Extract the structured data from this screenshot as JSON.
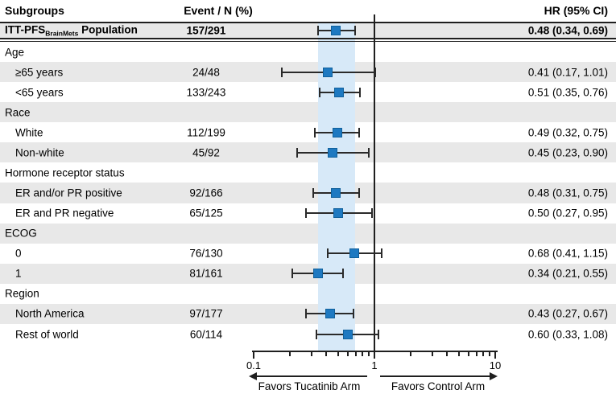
{
  "colors": {
    "row_stripe": "#E8E8E8",
    "band_blue": "#D7E9F8",
    "marker_blue": "#1E79C1",
    "marker_border": "#10609B",
    "line_black": "#1F1F1F"
  },
  "header": {
    "subgroups": "Subgroups",
    "event": "Event / N (%)",
    "hr": "HR (95% CI)"
  },
  "chart_data": {
    "type": "forest",
    "x_axis": {
      "scale": "log",
      "range": [
        0.1,
        10
      ],
      "major_ticks": [
        0.1,
        1,
        10
      ],
      "major_tick_labels": [
        "0.1",
        "1",
        "10"
      ],
      "minor_ticks": [
        0.2,
        0.3,
        0.4,
        0.5,
        0.6,
        0.7,
        0.8,
        0.9,
        2,
        3,
        4,
        5,
        6,
        7,
        8,
        9
      ],
      "reference_line": 1
    },
    "shaded_band": {
      "from": 0.34,
      "to": 0.69
    },
    "footer": {
      "left_arrow_label": "Favors Tucatinib Arm",
      "right_arrow_label": "Favors Control Arm"
    },
    "rows": [
      {
        "kind": "overall",
        "label": "ITT-PFS",
        "label_subscript": "BrainMets",
        "label_suffix": " Population",
        "event": "157/291",
        "hr": 0.48,
        "ci_low": 0.34,
        "ci_high": 0.69,
        "hr_text": "0.48 (0.34, 0.69)",
        "shaded": true
      },
      {
        "kind": "category",
        "label": "Age",
        "shaded": false
      },
      {
        "kind": "item",
        "label": "≥65 years",
        "event": "24/48",
        "hr": 0.41,
        "ci_low": 0.17,
        "ci_high": 1.01,
        "hr_text": "0.41 (0.17, 1.01)",
        "shaded": true
      },
      {
        "kind": "item",
        "label": "<65 years",
        "event": "133/243",
        "hr": 0.51,
        "ci_low": 0.35,
        "ci_high": 0.76,
        "hr_text": "0.51 (0.35, 0.76)",
        "shaded": false
      },
      {
        "kind": "category",
        "label": "Race",
        "shaded": true
      },
      {
        "kind": "item",
        "label": "White",
        "event": "112/199",
        "hr": 0.49,
        "ci_low": 0.32,
        "ci_high": 0.75,
        "hr_text": "0.49 (0.32, 0.75)",
        "shaded": false
      },
      {
        "kind": "item",
        "label": "Non-white",
        "event": "45/92",
        "hr": 0.45,
        "ci_low": 0.23,
        "ci_high": 0.9,
        "hr_text": "0.45 (0.23, 0.90)",
        "shaded": true
      },
      {
        "kind": "category",
        "label": "Hormone receptor status",
        "shaded": false
      },
      {
        "kind": "item",
        "label": "ER and/or PR positive",
        "event": "92/166",
        "hr": 0.48,
        "ci_low": 0.31,
        "ci_high": 0.75,
        "hr_text": "0.48 (0.31, 0.75)",
        "shaded": true
      },
      {
        "kind": "item",
        "label": "ER and PR negative",
        "event": "65/125",
        "hr": 0.5,
        "ci_low": 0.27,
        "ci_high": 0.95,
        "hr_text": "0.50 (0.27, 0.95)",
        "shaded": false
      },
      {
        "kind": "category",
        "label": "ECOG",
        "shaded": true
      },
      {
        "kind": "item",
        "label": "0",
        "event": "76/130",
        "hr": 0.68,
        "ci_low": 0.41,
        "ci_high": 1.15,
        "hr_text": "0.68 (0.41, 1.15)",
        "shaded": false
      },
      {
        "kind": "item",
        "label": "1",
        "event": "81/161",
        "hr": 0.34,
        "ci_low": 0.21,
        "ci_high": 0.55,
        "hr_text": "0.34 (0.21, 0.55)",
        "shaded": true
      },
      {
        "kind": "category",
        "label": "Region",
        "shaded": false
      },
      {
        "kind": "item",
        "label": "North America",
        "event": "97/177",
        "hr": 0.43,
        "ci_low": 0.27,
        "ci_high": 0.67,
        "hr_text": "0.43 (0.27, 0.67)",
        "shaded": true
      },
      {
        "kind": "item",
        "label": "Rest of world",
        "event": "60/114",
        "hr": 0.6,
        "ci_low": 0.33,
        "ci_high": 1.08,
        "hr_text": "0.60 (0.33, 1.08)",
        "shaded": false
      }
    ]
  }
}
